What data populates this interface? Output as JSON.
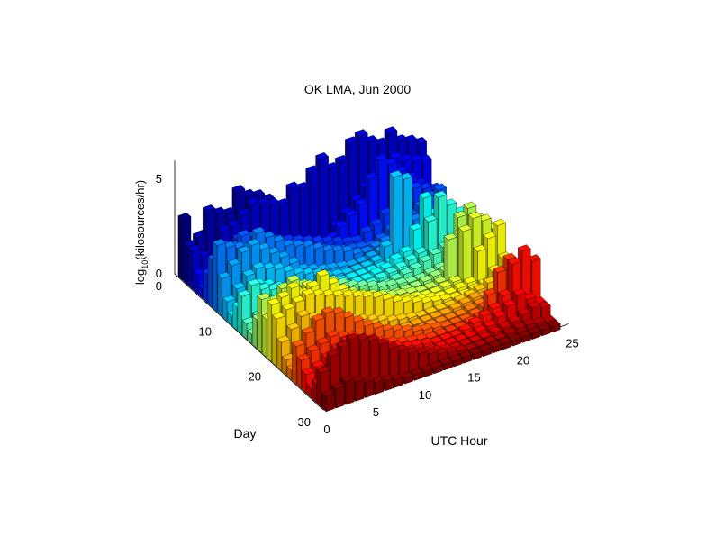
{
  "chart_data": {
    "type": "bar3d",
    "title": "OK LMA, Jun 2000",
    "xlabel": "UTC Hour",
    "ylabel": "Day",
    "zlabel_base": "log",
    "zlabel_sub": "10",
    "zlabel_rest": "(kilosources/hr)",
    "x_ticks": [
      "0",
      "5",
      "10",
      "15",
      "20",
      "25"
    ],
    "y_ticks": [
      "0",
      "10",
      "20",
      "30"
    ],
    "z_ticks": [
      "0",
      "5"
    ],
    "xlim": [
      0,
      25
    ],
    "ylim": [
      0,
      30
    ],
    "zlim": [
      0,
      6
    ],
    "grid": true,
    "colormap": "jet (by day)",
    "day_rows": [
      {
        "day": 1,
        "values": [
          3.2,
          1.5,
          2.0,
          1.0,
          0.8,
          0.5,
          0.6,
          0.5,
          0.7,
          1.0,
          0.9,
          1.2,
          1.0,
          0.8,
          0.6,
          0.8,
          1.0,
          1.2,
          1.5,
          1.8,
          2.0,
          1.6,
          1.2,
          0.9
        ]
      },
      {
        "day": 2,
        "values": [
          2.0,
          2.3,
          3.5,
          3.2,
          3.0,
          4.0,
          3.6,
          3.4,
          3.0,
          1.5,
          1.0,
          0.6,
          0.5,
          0.5,
          0.8,
          1.0,
          1.8,
          2.2,
          2.5,
          2.8,
          3.0,
          2.6,
          2.0,
          1.5
        ]
      },
      {
        "day": 3,
        "values": [
          2.0,
          1.5,
          1.0,
          2.5,
          2.6,
          3.0,
          3.4,
          3.2,
          3.0,
          2.8,
          3.5,
          3.3,
          4.0,
          4.5,
          3.8,
          4.0,
          4.8,
          5.0,
          4.5,
          4.2,
          4.6,
          4.0,
          3.8,
          3.5
        ]
      },
      {
        "day": 4,
        "values": [
          1.0,
          0.8,
          0.5,
          0.4,
          0.3,
          0.5,
          0.6,
          0.8,
          1.0,
          1.2,
          1.0,
          0.8,
          0.6,
          0.5,
          1.0,
          1.5,
          2.0,
          2.5,
          3.0,
          3.4,
          3.5,
          3.2,
          3.0,
          2.8
        ]
      },
      {
        "day": 5,
        "values": [
          0.5,
          0.4,
          0.3,
          0.3,
          0.2,
          0.3,
          0.4,
          0.5,
          0.6,
          0.5,
          0.4,
          0.3,
          0.5,
          0.8,
          1.2,
          1.6,
          2.0,
          3.2,
          4.0,
          3.6,
          3.0,
          2.5,
          2.0,
          1.5
        ]
      },
      {
        "day": 6,
        "values": [
          1.5,
          2.0,
          2.5,
          2.8,
          2.6,
          2.4,
          2.2,
          2.0,
          1.8,
          1.6,
          1.4,
          1.2,
          1.0,
          0.8,
          0.6,
          0.5,
          0.8,
          1.0,
          1.4,
          1.8,
          2.0,
          2.2,
          2.0,
          1.8
        ]
      },
      {
        "day": 7,
        "values": [
          2.5,
          3.0,
          2.8,
          3.2,
          3.0,
          2.6,
          2.4,
          2.0,
          1.8,
          1.5,
          1.2,
          1.0,
          0.8,
          0.6,
          0.5,
          0.4,
          0.3,
          0.5,
          0.8,
          1.0,
          1.2,
          1.5,
          1.8,
          2.0
        ]
      },
      {
        "day": 8,
        "values": [
          3.5,
          3.2,
          3.0,
          2.8,
          3.4,
          3.0,
          2.6,
          2.2,
          2.0,
          1.8,
          1.5,
          1.2,
          1.0,
          0.8,
          0.5,
          0.4,
          0.5,
          0.6,
          0.8,
          1.0,
          1.2,
          1.0,
          0.8,
          0.6
        ]
      },
      {
        "day": 9,
        "values": [
          2.0,
          2.5,
          3.0,
          3.2,
          2.8,
          2.4,
          2.0,
          1.5,
          1.0,
          0.8,
          0.6,
          0.5,
          0.4,
          0.3,
          0.3,
          0.4,
          0.5,
          0.6,
          0.5,
          0.4,
          0.3,
          0.4,
          0.5,
          0.6
        ]
      },
      {
        "day": 10,
        "values": [
          1.0,
          1.5,
          2.0,
          2.2,
          2.0,
          1.8,
          1.5,
          1.2,
          1.0,
          0.8,
          0.5,
          0.4,
          0.3,
          0.3,
          0.3,
          0.4,
          1.0,
          4.5,
          4.2,
          0.5,
          0.4,
          0.3,
          0.3,
          0.4
        ]
      },
      {
        "day": 11,
        "values": [
          0.5,
          0.8,
          1.0,
          1.2,
          1.0,
          0.8,
          0.6,
          0.5,
          0.4,
          0.3,
          0.3,
          0.3,
          0.3,
          0.3,
          0.3,
          0.3,
          0.4,
          0.5,
          0.6,
          0.5,
          0.4,
          0.3,
          0.3,
          0.3
        ]
      },
      {
        "day": 12,
        "values": [
          1.2,
          1.5,
          2.0,
          1.8,
          1.5,
          1.2,
          1.0,
          0.8,
          0.6,
          0.5,
          0.4,
          0.3,
          0.3,
          0.3,
          0.4,
          0.5,
          0.8,
          1.0,
          2.0,
          3.5,
          2.5,
          2.0,
          1.5,
          1.0
        ]
      },
      {
        "day": 13,
        "values": [
          2.0,
          2.4,
          2.0,
          1.8,
          1.6,
          1.4,
          1.2,
          1.0,
          0.8,
          0.6,
          0.5,
          0.4,
          0.3,
          0.3,
          0.4,
          0.5,
          0.6,
          0.8,
          1.0,
          2.5,
          3.6,
          3.0,
          2.4,
          1.8
        ]
      },
      {
        "day": 14,
        "values": [
          0.8,
          1.0,
          1.2,
          1.0,
          0.8,
          0.6,
          0.5,
          0.4,
          0.3,
          0.3,
          0.3,
          0.3,
          0.3,
          0.3,
          0.3,
          0.4,
          0.5,
          0.6,
          0.8,
          1.0,
          1.2,
          1.0,
          0.8,
          0.6
        ]
      },
      {
        "day": 15,
        "values": [
          0.5,
          0.6,
          0.8,
          1.0,
          1.2,
          1.5,
          1.8,
          2.0,
          1.8,
          1.5,
          1.2,
          1.0,
          0.8,
          0.6,
          0.5,
          0.4,
          0.3,
          0.3,
          0.4,
          0.5,
          0.6,
          0.5,
          0.4,
          0.3
        ]
      },
      {
        "day": 16,
        "values": [
          1.5,
          1.8,
          2.0,
          2.4,
          2.0,
          1.8,
          1.6,
          1.4,
          1.2,
          1.0,
          0.8,
          0.6,
          0.5,
          0.4,
          0.3,
          0.3,
          0.3,
          0.4,
          0.5,
          0.6,
          0.8,
          1.0,
          1.5,
          2.0
        ]
      },
      {
        "day": 17,
        "values": [
          2.8,
          2.5,
          3.0,
          3.2,
          2.8,
          2.5,
          2.2,
          2.0,
          1.8,
          1.5,
          1.2,
          1.0,
          0.8,
          0.6,
          0.5,
          0.4,
          0.3,
          0.3,
          0.4,
          2.5,
          3.5,
          3.8,
          3.0,
          2.4
        ]
      },
      {
        "day": 18,
        "values": [
          2.0,
          2.2,
          2.5,
          2.8,
          3.0,
          2.6,
          2.2,
          2.0,
          1.8,
          1.5,
          1.2,
          1.0,
          0.8,
          0.6,
          0.5,
          0.4,
          0.3,
          0.3,
          0.4,
          0.5,
          3.0,
          3.5,
          3.2,
          2.6
        ]
      },
      {
        "day": 19,
        "values": [
          3.0,
          3.2,
          3.5,
          3.0,
          3.2,
          3.6,
          3.0,
          2.5,
          2.0,
          1.8,
          1.5,
          1.2,
          1.0,
          0.8,
          0.6,
          0.5,
          0.4,
          0.3,
          0.3,
          0.4,
          0.5,
          2.0,
          2.5,
          3.0
        ]
      },
      {
        "day": 20,
        "values": [
          2.5,
          2.8,
          3.0,
          3.2,
          3.0,
          2.8,
          2.6,
          2.4,
          2.2,
          2.0,
          1.8,
          1.5,
          1.2,
          1.0,
          0.8,
          0.6,
          0.5,
          0.4,
          0.3,
          0.3,
          0.4,
          0.5,
          1.0,
          1.5
        ]
      },
      {
        "day": 21,
        "values": [
          1.5,
          2.0,
          2.5,
          2.2,
          2.0,
          1.8,
          1.6,
          1.4,
          1.2,
          1.0,
          0.8,
          0.6,
          0.5,
          0.4,
          0.3,
          0.3,
          0.3,
          0.3,
          0.4,
          0.5,
          0.6,
          0.8,
          1.0,
          1.2
        ]
      },
      {
        "day": 22,
        "values": [
          0.8,
          1.0,
          1.2,
          1.0,
          0.8,
          0.6,
          0.5,
          0.4,
          0.3,
          0.3,
          0.3,
          0.3,
          0.3,
          0.3,
          0.3,
          0.3,
          0.3,
          0.4,
          0.5,
          0.6,
          0.5,
          0.4,
          0.3,
          0.3
        ]
      },
      {
        "day": 23,
        "values": [
          0.5,
          0.5,
          0.6,
          0.8,
          1.0,
          0.8,
          0.6,
          0.5,
          0.4,
          0.3,
          0.3,
          0.3,
          0.3,
          0.3,
          0.3,
          0.3,
          0.3,
          0.3,
          0.4,
          0.5,
          0.6,
          0.5,
          0.4,
          0.3
        ]
      },
      {
        "day": 24,
        "values": [
          2.0,
          2.5,
          3.0,
          3.2,
          3.0,
          2.6,
          2.2,
          1.8,
          1.5,
          1.2,
          1.0,
          0.8,
          0.6,
          0.5,
          0.4,
          0.3,
          0.3,
          0.3,
          0.4,
          0.6,
          1.0,
          1.5,
          2.0,
          1.8
        ]
      },
      {
        "day": 25,
        "values": [
          1.5,
          1.8,
          2.0,
          2.2,
          2.0,
          1.8,
          1.5,
          1.2,
          1.0,
          0.8,
          0.6,
          0.5,
          0.4,
          0.3,
          0.3,
          0.3,
          0.3,
          0.4,
          0.5,
          1.5,
          2.5,
          3.0,
          2.5,
          2.0
        ]
      },
      {
        "day": 26,
        "values": [
          1.0,
          1.2,
          1.5,
          1.8,
          2.0,
          1.8,
          1.5,
          1.2,
          1.0,
          0.8,
          0.6,
          0.5,
          0.4,
          0.3,
          0.3,
          0.3,
          0.4,
          0.6,
          0.8,
          1.0,
          1.5,
          3.0,
          3.5,
          2.8
        ]
      },
      {
        "day": 27,
        "values": [
          0.5,
          0.6,
          0.8,
          1.0,
          1.2,
          1.0,
          0.8,
          0.6,
          0.5,
          0.4,
          0.3,
          0.3,
          0.3,
          0.3,
          0.3,
          0.3,
          0.3,
          0.4,
          0.5,
          0.8,
          1.2,
          1.6,
          1.2,
          0.8
        ]
      },
      {
        "day": 28,
        "values": [
          1.0,
          1.5,
          2.0,
          2.5,
          2.2,
          2.0,
          1.8,
          1.5,
          1.2,
          1.0,
          0.8,
          0.6,
          0.5,
          0.4,
          0.3,
          0.3,
          0.3,
          0.3,
          0.4,
          0.5,
          0.6,
          0.8,
          1.0,
          0.8
        ]
      },
      {
        "day": 29,
        "values": [
          1.8,
          2.5,
          2.8,
          3.0,
          2.8,
          2.6,
          2.2,
          1.8,
          1.5,
          1.2,
          1.0,
          0.8,
          0.6,
          0.5,
          0.4,
          0.3,
          0.3,
          0.3,
          0.3,
          0.4,
          0.5,
          0.5,
          0.4,
          0.3
        ]
      },
      {
        "day": 30,
        "values": [
          0.8,
          1.0,
          1.2,
          1.0,
          0.8,
          0.6,
          0.5,
          0.4,
          0.3,
          0.3,
          0.3,
          0.3,
          0.3,
          0.3,
          0.3,
          0.3,
          0.3,
          0.3,
          0.3,
          0.3,
          0.3,
          0.3,
          0.3,
          0.3
        ]
      }
    ]
  }
}
